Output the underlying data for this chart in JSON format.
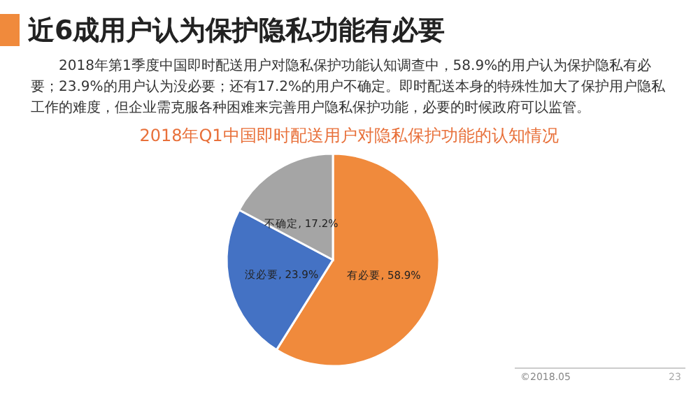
{
  "chart_data": {
    "type": "pie",
    "title": "2018年Q1中国即时配送用户对隐私保护功能的认知情况",
    "subtitle": "2018年第1季度中国即时配送用户对隐私保护功能认知调查中，58.9%的用户认为保护隐私有必要；23.9%的用户认为没必要；还有17.2%的用户不确定。即时配送本身的特殊性加大了保护用户隐私工作的难度，但企业需克服各种困难来完善用户隐私保护功能，必要的时候政府可以监管。",
    "annotations": [
      "近6成用户认为保护隐私功能有必要",
      "©2018.05",
      "23"
    ],
    "categories": [
      "有必要",
      "没必要",
      "不确定"
    ],
    "values": [
      58.9,
      23.9,
      17.2
    ],
    "colors": [
      "#f08a3c",
      "#4472c4",
      "#a5a5a5"
    ],
    "value_labels": [
      ", 58.9%",
      ", 23.9%",
      ", 17.2%"
    ],
    "legend": false
  }
}
